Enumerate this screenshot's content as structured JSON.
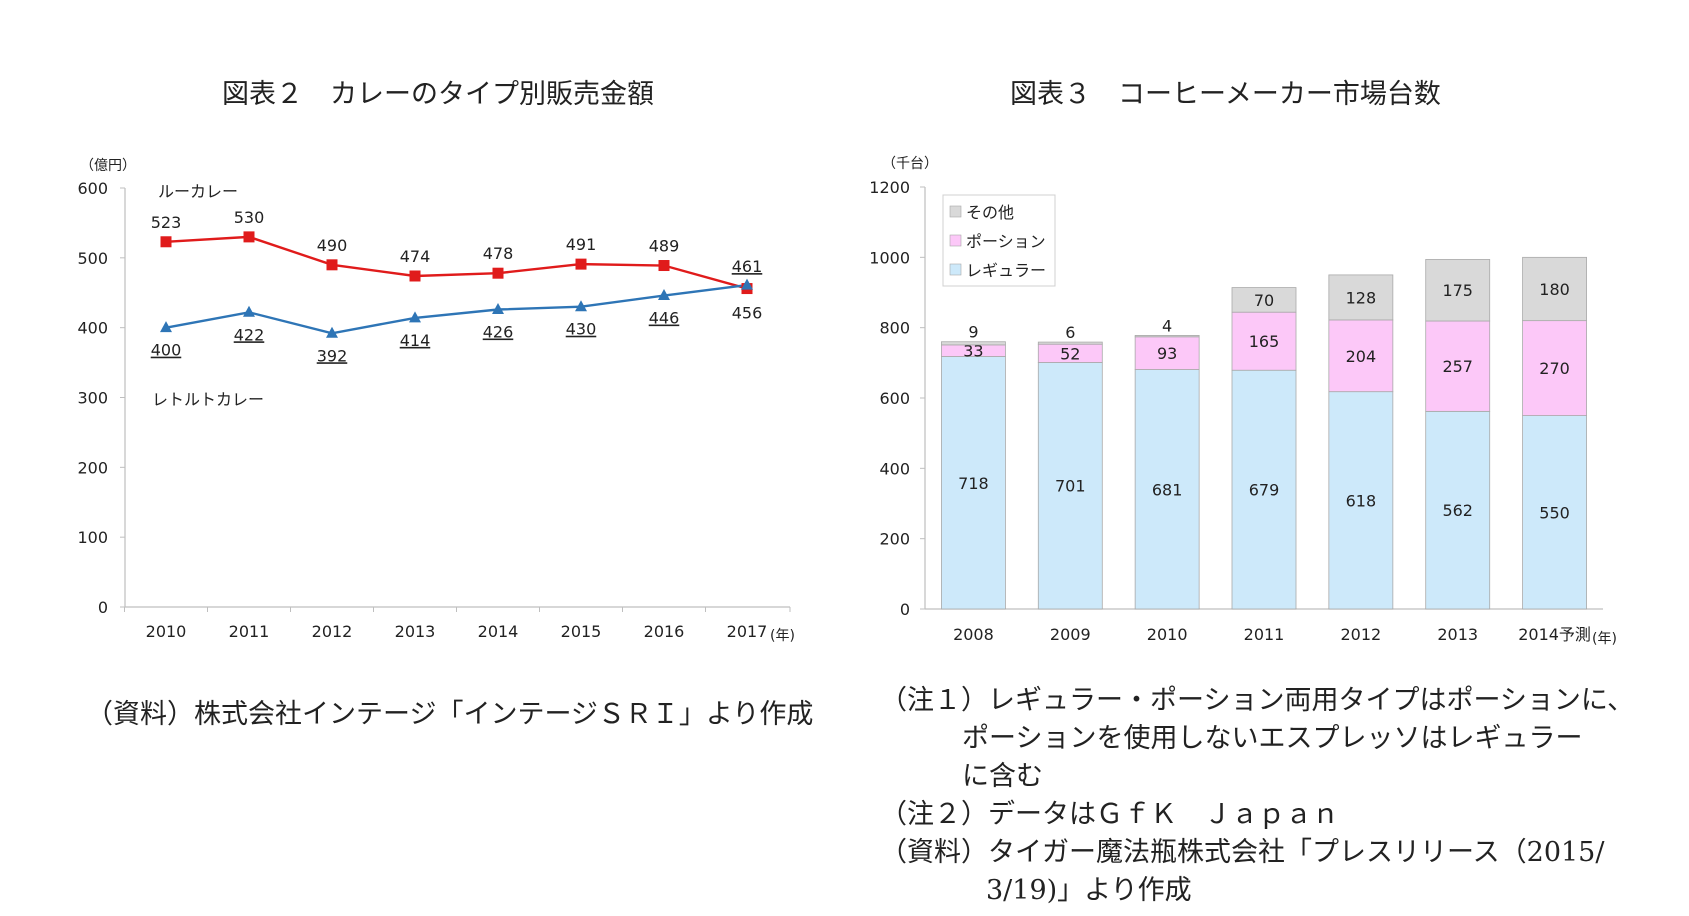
{
  "chart_data": [
    {
      "type": "line",
      "title": "図表２　カレーのタイプ別販売金額",
      "ylabel": "（億円）",
      "xlabel": "(年)",
      "ylim": [
        0,
        600
      ],
      "yticks": [
        "0",
        "100",
        "200",
        "300",
        "400",
        "500",
        "600"
      ],
      "categories": [
        "2010",
        "2011",
        "2012",
        "2013",
        "2014",
        "2015",
        "2016",
        "2017"
      ],
      "series": [
        {
          "name": "ルーカレー",
          "color": "#e01b1b",
          "marker": "square",
          "values": [
            523,
            530,
            490,
            474,
            478,
            491,
            489,
            456
          ],
          "labels": [
            "523",
            "530",
            "490",
            "474",
            "478",
            "491",
            "489",
            "456"
          ]
        },
        {
          "name": "レトルトカレー",
          "color": "#2e75b6",
          "marker": "triangle",
          "values": [
            400,
            422,
            392,
            414,
            426,
            430,
            446,
            461
          ],
          "labels": [
            "400",
            "422",
            "392",
            "414",
            "426",
            "430",
            "446",
            "461"
          ]
        }
      ],
      "source": "（資料）株式会社インテージ「インテージＳＲＩ」より作成"
    },
    {
      "type": "bar",
      "stacked": true,
      "title": "図表３　コーヒーメーカー市場台数",
      "ylabel": "（千台）",
      "xlabel": "(年)",
      "ylim": [
        0,
        1200
      ],
      "yticks": [
        "0",
        "200",
        "400",
        "600",
        "800",
        "1000",
        "1200"
      ],
      "categories": [
        "2008",
        "2009",
        "2010",
        "2011",
        "2012",
        "2013",
        "2014予測"
      ],
      "series": [
        {
          "name": "レギュラー",
          "color": "#cde9fa",
          "values": [
            718,
            701,
            681,
            679,
            618,
            562,
            550
          ]
        },
        {
          "name": "ポーション",
          "color": "#fcc8f8",
          "values": [
            33,
            52,
            93,
            165,
            204,
            257,
            270
          ]
        },
        {
          "name": "その他",
          "color": "#d9d9d9",
          "values": [
            9,
            6,
            4,
            70,
            128,
            175,
            180
          ]
        }
      ],
      "legend_order": [
        "その他",
        "ポーション",
        "レギュラー"
      ],
      "notes": [
        "（注１）レギュラー・ポーション両用タイプはポーションに、",
        "ポーションを使用しないエスプレッソはレギュラー",
        "に含む",
        "（注２）データはＧｆＫ　Ｊａｐａｎ",
        "（資料）タイガー魔法瓶株式会社「プレスリリース（2015/",
        "3/19)」より作成"
      ]
    }
  ]
}
